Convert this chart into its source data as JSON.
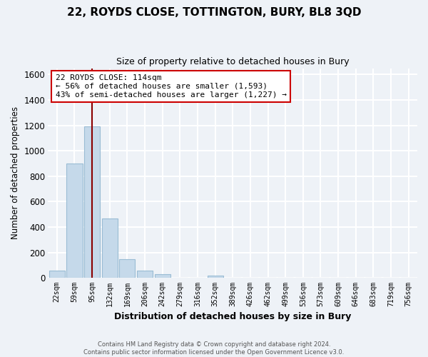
{
  "title": "22, ROYDS CLOSE, TOTTINGTON, BURY, BL8 3QD",
  "subtitle": "Size of property relative to detached houses in Bury",
  "xlabel": "Distribution of detached houses by size in Bury",
  "ylabel": "Number of detached properties",
  "bar_labels": [
    "22sqm",
    "59sqm",
    "95sqm",
    "132sqm",
    "169sqm",
    "206sqm",
    "242sqm",
    "279sqm",
    "316sqm",
    "352sqm",
    "389sqm",
    "426sqm",
    "462sqm",
    "499sqm",
    "536sqm",
    "573sqm",
    "609sqm",
    "646sqm",
    "683sqm",
    "719sqm",
    "756sqm"
  ],
  "bar_values": [
    55,
    900,
    1190,
    470,
    150,
    60,
    30,
    0,
    0,
    20,
    0,
    0,
    0,
    0,
    0,
    0,
    0,
    0,
    0,
    0,
    0
  ],
  "bar_color": "#c5d9ea",
  "bar_edge_color": "#9abcd4",
  "ylim": [
    0,
    1650
  ],
  "yticks": [
    0,
    200,
    400,
    600,
    800,
    1000,
    1200,
    1400,
    1600
  ],
  "property_line_x": 2.0,
  "property_line_color": "#8b0000",
  "annotation_text": "22 ROYDS CLOSE: 114sqm\n← 56% of detached houses are smaller (1,593)\n43% of semi-detached houses are larger (1,227) →",
  "annotation_box_color": "#ffffff",
  "annotation_box_edge_color": "#cc0000",
  "footer_line1": "Contains HM Land Registry data © Crown copyright and database right 2024.",
  "footer_line2": "Contains public sector information licensed under the Open Government Licence v3.0.",
  "background_color": "#eef2f7",
  "grid_color": "#ffffff",
  "plot_bg_color": "#eef2f7"
}
